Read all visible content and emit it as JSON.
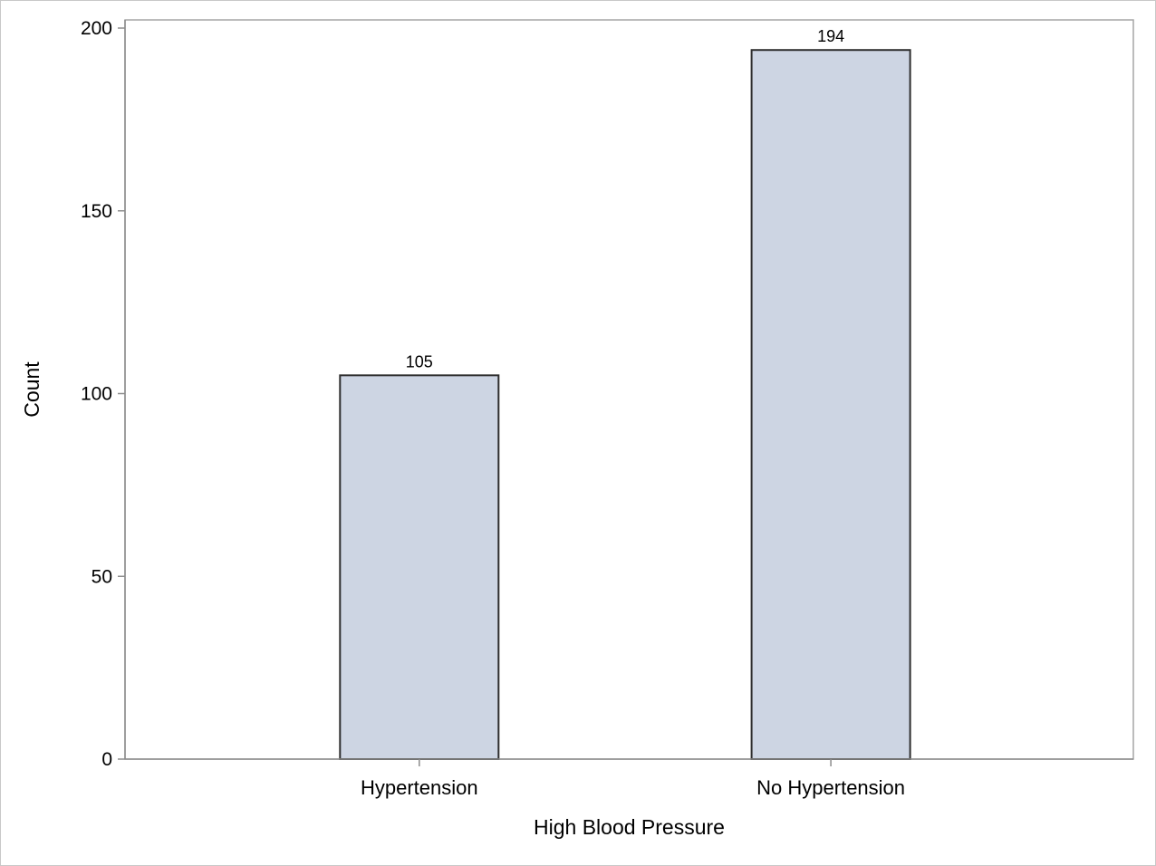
{
  "chart_data": {
    "type": "bar",
    "title": "",
    "xlabel": "High Blood Pressure",
    "ylabel": "Count",
    "categories": [
      "Hypertension",
      "No Hypertension"
    ],
    "values": [
      105,
      194
    ],
    "data_labels": [
      "105",
      "194"
    ],
    "ylim": [
      0,
      200
    ],
    "yticks": [
      0,
      50,
      100,
      150,
      200
    ],
    "ytick_labels": [
      "0",
      "50",
      "100",
      "150",
      "200"
    ],
    "grid": false,
    "legend": "none",
    "colors": {
      "bar_fill": "#cdd5e3",
      "bar_stroke": "#2e2e2e",
      "axis": "#8c8c8c",
      "frame": "#a6a6a6"
    }
  }
}
